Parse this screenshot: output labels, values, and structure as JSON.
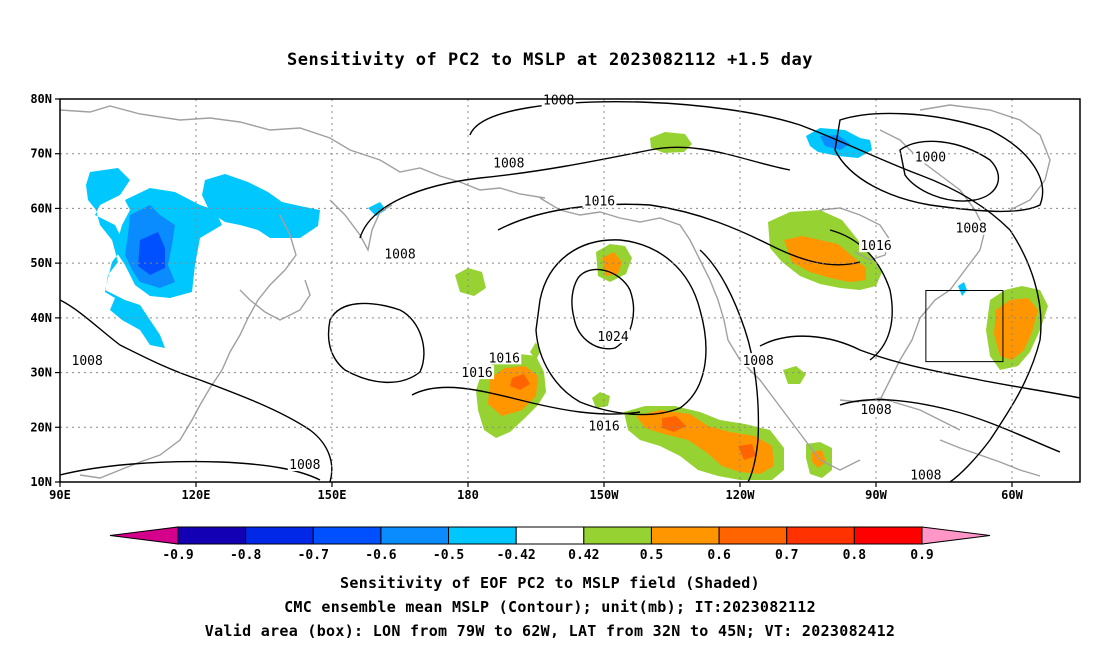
{
  "title": "Sensitivity of PC2 to MSLP at 2023082112 +1.5 day",
  "map": {
    "lat_ticks": [
      "80N",
      "70N",
      "60N",
      "50N",
      "40N",
      "30N",
      "20N",
      "10N"
    ],
    "lon_ticks": [
      "90E",
      "120E",
      "150E",
      "180",
      "150W",
      "120W",
      "90W",
      "60W"
    ],
    "lon_range": [
      "90E",
      "45W"
    ],
    "lat_range": [
      "10N",
      "80N"
    ],
    "gridlines": "dotted",
    "coastline_color": "#a0a0a0",
    "contour_color": "#000000",
    "contour_labels": [
      {
        "text": "1008",
        "lon": -160,
        "lat": 79.7
      },
      {
        "text": "1008",
        "lon": -171,
        "lat": 68.2
      },
      {
        "text": "1016",
        "lon": -151,
        "lat": 61.3
      },
      {
        "text": "1008",
        "lon": 165,
        "lat": 51.6
      },
      {
        "text": "1000",
        "lon": -78,
        "lat": 69.3
      },
      {
        "text": "1008",
        "lon": -69,
        "lat": 56.3
      },
      {
        "text": "1016",
        "lon": -90,
        "lat": 53.1
      },
      {
        "text": "1024",
        "lon": -148,
        "lat": 36.5
      },
      {
        "text": "1008",
        "lon": -116,
        "lat": 32.1
      },
      {
        "text": "1016",
        "lon": -172,
        "lat": 32.6
      },
      {
        "text": "1016",
        "lon": -178,
        "lat": 29.9
      },
      {
        "text": "1016",
        "lon": -150,
        "lat": 20.1
      },
      {
        "text": "1008",
        "lon": -90,
        "lat": 23.2
      },
      {
        "text": "1008",
        "lon": -79,
        "lat": 11.2
      },
      {
        "text": "1008",
        "lon": 96,
        "lat": 32.1
      },
      {
        "text": "1008",
        "lon": 144,
        "lat": 13.1
      }
    ],
    "valid_box": {
      "lon_min": -79,
      "lon_max": -62,
      "lat_min": 32,
      "lat_max": 45
    }
  },
  "colorbar": {
    "labels": [
      "-0.9",
      "-0.8",
      "-0.7",
      "-0.6",
      "-0.5",
      "-0.42",
      "0.42",
      "0.5",
      "0.6",
      "0.7",
      "0.8",
      "0.9"
    ],
    "colors": [
      "#d4008c",
      "#1400b4",
      "#0028e6",
      "#0050ff",
      "#0a8cff",
      "#00c8ff",
      "#ffffff",
      "#96d232",
      "#ff9600",
      "#ff6400",
      "#ff3200",
      "#ff0000",
      "#ff96c8"
    ]
  },
  "captions": [
    "Sensitivity of EOF PC2 to MSLP field (Shaded)",
    "CMC ensemble mean MSLP (Contour); unit(mb); IT:2023082112",
    "Valid area (box): LON from 79W to 62W, LAT from 32N to 45N; VT: 2023082412"
  ]
}
